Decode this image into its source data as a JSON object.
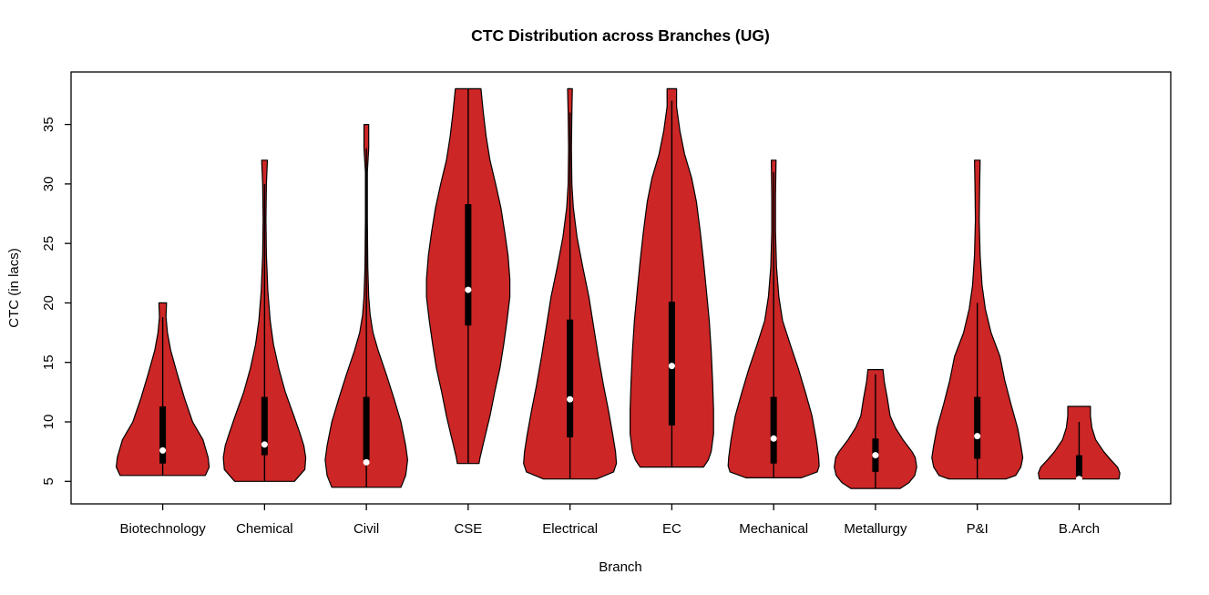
{
  "title": "CTC Distribution across Branches (UG)",
  "chart_data": {
    "type": "violin",
    "title": "CTC Distribution across Branches (UG)",
    "xlabel": "Branch",
    "ylabel": "CTC (in lacs)",
    "y_ticks": [
      5,
      10,
      15,
      20,
      25,
      30,
      35
    ],
    "ylim": [
      3.1,
      39.4
    ],
    "grid": false,
    "legend": "none",
    "categories": [
      "Biotechnology",
      "Chemical",
      "Civil",
      "CSE",
      "Electrical",
      "EC",
      "Mechanical",
      "Metallurgy",
      "P&I",
      "B.Arch"
    ],
    "series": [
      {
        "name": "Biotechnology",
        "min": 5.5,
        "q1": 6.5,
        "median": 7.6,
        "q3": 11.3,
        "max": 20,
        "whisker_top": 18.8,
        "profile": [
          [
            20,
            0.08
          ],
          [
            18.8,
            0.07
          ],
          [
            17.5,
            0.1
          ],
          [
            16,
            0.17
          ],
          [
            14,
            0.31
          ],
          [
            12,
            0.46
          ],
          [
            10,
            0.63
          ],
          [
            8.5,
            0.85
          ],
          [
            7,
            0.96
          ],
          [
            6.2,
            0.98
          ],
          [
            5.5,
            0.9
          ]
        ]
      },
      {
        "name": "Chemical",
        "min": 5.0,
        "q1": 7.2,
        "median": 8.1,
        "q3": 12.1,
        "max": 32,
        "whisker_top": 30,
        "profile": [
          [
            32,
            0.06
          ],
          [
            30,
            0.04
          ],
          [
            27,
            0.03
          ],
          [
            24,
            0.04
          ],
          [
            21,
            0.07
          ],
          [
            18.5,
            0.12
          ],
          [
            16.5,
            0.19
          ],
          [
            14.5,
            0.3
          ],
          [
            12.5,
            0.44
          ],
          [
            10.5,
            0.62
          ],
          [
            9,
            0.75
          ],
          [
            8,
            0.83
          ],
          [
            7,
            0.87
          ],
          [
            6,
            0.85
          ],
          [
            5,
            0.63
          ]
        ]
      },
      {
        "name": "Civil",
        "min": 4.5,
        "q1": 6.8,
        "median": 6.6,
        "q3": 12.1,
        "max": 35,
        "whisker_top": 33,
        "profile": [
          [
            35,
            0.05
          ],
          [
            33,
            0.05
          ],
          [
            31,
            0.02
          ],
          [
            27,
            0.02
          ],
          [
            23,
            0.03
          ],
          [
            20.5,
            0.05
          ],
          [
            19,
            0.08
          ],
          [
            17.5,
            0.14
          ],
          [
            16,
            0.25
          ],
          [
            14,
            0.42
          ],
          [
            12,
            0.58
          ],
          [
            10,
            0.73
          ],
          [
            8,
            0.83
          ],
          [
            6.8,
            0.87
          ],
          [
            5.5,
            0.83
          ],
          [
            4.5,
            0.73
          ]
        ]
      },
      {
        "name": "CSE",
        "min": 6.5,
        "q1": 18.1,
        "median": 21.1,
        "q3": 28.3,
        "max": 38,
        "whisker_top": 38,
        "profile": [
          [
            38,
            0.27
          ],
          [
            36,
            0.32
          ],
          [
            34,
            0.38
          ],
          [
            32,
            0.46
          ],
          [
            30,
            0.58
          ],
          [
            28,
            0.69
          ],
          [
            26,
            0.77
          ],
          [
            24,
            0.84
          ],
          [
            22,
            0.88
          ],
          [
            20.5,
            0.88
          ],
          [
            18.5,
            0.82
          ],
          [
            16.5,
            0.75
          ],
          [
            14.5,
            0.67
          ],
          [
            12.5,
            0.56
          ],
          [
            10.5,
            0.46
          ],
          [
            9,
            0.37
          ],
          [
            8,
            0.31
          ],
          [
            7,
            0.25
          ],
          [
            6.5,
            0.23
          ]
        ]
      },
      {
        "name": "Electrical",
        "min": 5.2,
        "q1": 8.7,
        "median": 11.9,
        "q3": 18.6,
        "max": 38,
        "whisker_top": 36,
        "profile": [
          [
            38,
            0.05
          ],
          [
            36,
            0.04
          ],
          [
            33,
            0.03
          ],
          [
            30,
            0.04
          ],
          [
            28,
            0.07
          ],
          [
            25.5,
            0.15
          ],
          [
            23,
            0.27
          ],
          [
            20.5,
            0.4
          ],
          [
            18,
            0.5
          ],
          [
            15.5,
            0.6
          ],
          [
            13,
            0.71
          ],
          [
            11,
            0.81
          ],
          [
            9,
            0.9
          ],
          [
            7.5,
            0.96
          ],
          [
            6.5,
            0.98
          ],
          [
            5.8,
            0.92
          ],
          [
            5.2,
            0.56
          ]
        ]
      },
      {
        "name": "EC",
        "min": 6.2,
        "q1": 9.7,
        "median": 14.7,
        "q3": 20.1,
        "max": 38,
        "whisker_top": 37,
        "profile": [
          [
            38,
            0.1
          ],
          [
            36.5,
            0.1
          ],
          [
            34.5,
            0.17
          ],
          [
            32.5,
            0.27
          ],
          [
            30.5,
            0.42
          ],
          [
            28.5,
            0.52
          ],
          [
            26,
            0.6
          ],
          [
            23.5,
            0.67
          ],
          [
            21,
            0.73
          ],
          [
            18.5,
            0.79
          ],
          [
            16,
            0.83
          ],
          [
            13.5,
            0.86
          ],
          [
            11,
            0.88
          ],
          [
            9,
            0.88
          ],
          [
            7.5,
            0.83
          ],
          [
            6.8,
            0.77
          ],
          [
            6.2,
            0.67
          ]
        ]
      },
      {
        "name": "Mechanical",
        "min": 5.3,
        "q1": 6.5,
        "median": 8.6,
        "q3": 12.1,
        "max": 32,
        "whisker_top": 31,
        "profile": [
          [
            32,
            0.05
          ],
          [
            29,
            0.04
          ],
          [
            26,
            0.04
          ],
          [
            23,
            0.06
          ],
          [
            20.5,
            0.11
          ],
          [
            18.5,
            0.19
          ],
          [
            16.5,
            0.35
          ],
          [
            14.5,
            0.52
          ],
          [
            12.5,
            0.67
          ],
          [
            10.5,
            0.81
          ],
          [
            8.5,
            0.9
          ],
          [
            7,
            0.95
          ],
          [
            6.3,
            0.96
          ],
          [
            5.8,
            0.92
          ],
          [
            5.3,
            0.58
          ]
        ]
      },
      {
        "name": "Metallurgy",
        "min": 4.4,
        "q1": 5.8,
        "median": 7.2,
        "q3": 8.6,
        "max": 14.4,
        "whisker_top": 14,
        "profile": [
          [
            14.4,
            0.16
          ],
          [
            13.3,
            0.19
          ],
          [
            12,
            0.25
          ],
          [
            10.5,
            0.31
          ],
          [
            9.5,
            0.42
          ],
          [
            8.5,
            0.58
          ],
          [
            7.5,
            0.77
          ],
          [
            7,
            0.84
          ],
          [
            6.2,
            0.87
          ],
          [
            5.5,
            0.83
          ],
          [
            4.9,
            0.71
          ],
          [
            4.4,
            0.52
          ]
        ]
      },
      {
        "name": "P&I",
        "min": 5.2,
        "q1": 6.9,
        "median": 8.8,
        "q3": 12.1,
        "max": 32,
        "whisker_top": 20,
        "profile": [
          [
            32,
            0.06
          ],
          [
            30,
            0.05
          ],
          [
            27,
            0.04
          ],
          [
            24,
            0.06
          ],
          [
            21.5,
            0.1
          ],
          [
            19.5,
            0.17
          ],
          [
            17.5,
            0.29
          ],
          [
            15.5,
            0.48
          ],
          [
            13.5,
            0.58
          ],
          [
            11.5,
            0.71
          ],
          [
            9.5,
            0.85
          ],
          [
            8,
            0.92
          ],
          [
            7,
            0.96
          ],
          [
            6.2,
            0.92
          ],
          [
            5.5,
            0.81
          ],
          [
            5.2,
            0.6
          ]
        ]
      },
      {
        "name": "B.Arch",
        "min": 5.2,
        "q1": 5.4,
        "median": 5.2,
        "q3": 7.2,
        "max": 11.3,
        "whisker_top": 10,
        "profile": [
          [
            11.3,
            0.24
          ],
          [
            10.5,
            0.24
          ],
          [
            9.5,
            0.27
          ],
          [
            8.5,
            0.35
          ],
          [
            7.5,
            0.52
          ],
          [
            6.8,
            0.67
          ],
          [
            6.2,
            0.81
          ],
          [
            5.7,
            0.86
          ],
          [
            5.2,
            0.84
          ]
        ]
      }
    ],
    "style": {
      "violin_fill": "#CC2626",
      "violin_stroke": "#000000",
      "box_color": "#000000",
      "median_dot_color": "#FFFFFF",
      "axis_color": "#000000",
      "background": "#FFFFFF"
    }
  }
}
